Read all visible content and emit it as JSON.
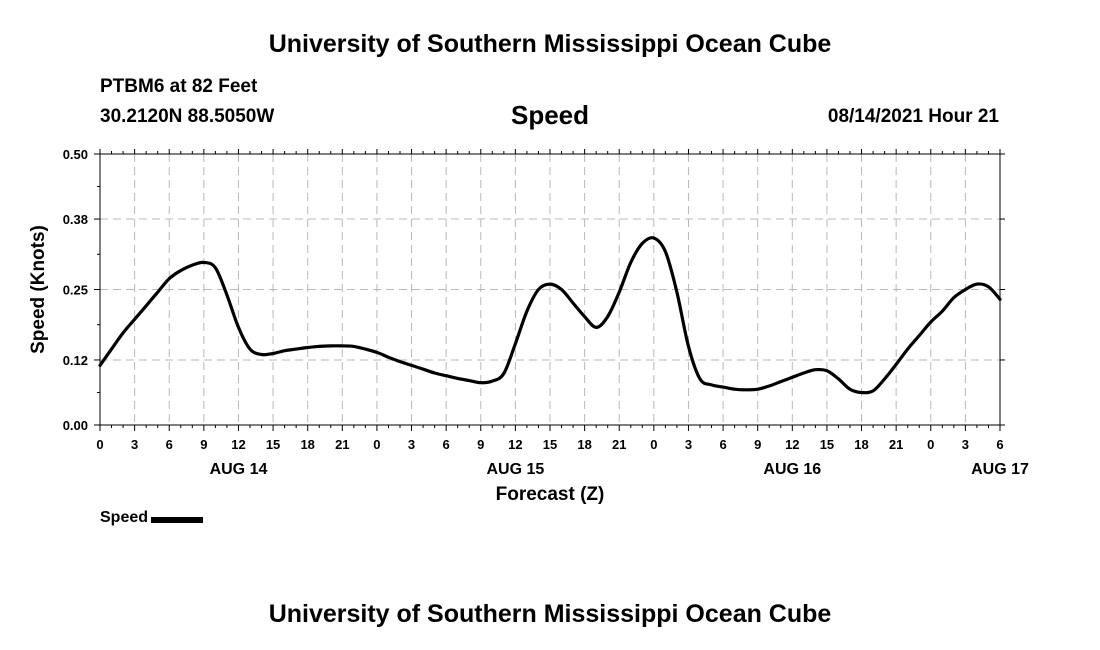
{
  "header": {
    "title": "University of Southern Mississippi Ocean Cube",
    "station": "PTBM6 at 82 Feet",
    "coordinates": "30.2120N  88.5050W",
    "variable": "Speed",
    "datetime": "08/14/2021 Hour 21"
  },
  "footer": {
    "title": "University of Southern Mississippi Ocean Cube"
  },
  "legend": {
    "label": "Speed"
  },
  "chart_data": {
    "type": "line",
    "title": "Speed",
    "xlabel": "Forecast (Z)",
    "ylabel": "Speed (Knots)",
    "ylim": [
      0,
      0.5
    ],
    "xlim": [
      0,
      78
    ],
    "y_ticks": [
      "0.00",
      "0.12",
      "0.25",
      "0.38",
      "0.50"
    ],
    "x_ticks": [
      "0",
      "3",
      "6",
      "9",
      "12",
      "15",
      "18",
      "21",
      "0",
      "3",
      "6",
      "9",
      "12",
      "15",
      "18",
      "21",
      "0",
      "3",
      "6",
      "9",
      "12",
      "15",
      "18",
      "21",
      "0",
      "3",
      "6"
    ],
    "date_labels": [
      {
        "label": "AUG 14",
        "hour": 12
      },
      {
        "label": "AUG 15",
        "hour": 36
      },
      {
        "label": "AUG 16",
        "hour": 60
      },
      {
        "label": "AUG 17",
        "hour": 78
      }
    ],
    "grid": true,
    "legend_position": "bottom-left",
    "series": [
      {
        "name": "Speed",
        "color": "#000000",
        "x": [
          0,
          1,
          2,
          3,
          4,
          5,
          6,
          7,
          8,
          9,
          10,
          11,
          12,
          13,
          14,
          15,
          16,
          17,
          18,
          19,
          20,
          21,
          22,
          23,
          24,
          25,
          26,
          27,
          28,
          29,
          30,
          31,
          32,
          33,
          34,
          35,
          36,
          37,
          38,
          39,
          40,
          41,
          42,
          43,
          44,
          45,
          46,
          47,
          48,
          49,
          50,
          51,
          52,
          53,
          54,
          55,
          56,
          57,
          58,
          59,
          60,
          61,
          62,
          63,
          64,
          65,
          66,
          67,
          68,
          69,
          70,
          71,
          72,
          73,
          74,
          75,
          76,
          77,
          78
        ],
        "y": [
          0.11,
          0.14,
          0.17,
          0.195,
          0.22,
          0.245,
          0.27,
          0.285,
          0.295,
          0.3,
          0.29,
          0.24,
          0.18,
          0.14,
          0.13,
          0.132,
          0.137,
          0.14,
          0.143,
          0.145,
          0.146,
          0.146,
          0.145,
          0.14,
          0.134,
          0.125,
          0.117,
          0.11,
          0.103,
          0.096,
          0.091,
          0.086,
          0.082,
          0.078,
          0.081,
          0.095,
          0.15,
          0.21,
          0.25,
          0.26,
          0.25,
          0.225,
          0.2,
          0.18,
          0.2,
          0.245,
          0.3,
          0.335,
          0.345,
          0.32,
          0.245,
          0.145,
          0.085,
          0.074,
          0.07,
          0.066,
          0.065,
          0.066,
          0.072,
          0.08,
          0.088,
          0.096,
          0.102,
          0.1,
          0.085,
          0.066,
          0.06,
          0.063,
          0.085,
          0.112,
          0.14,
          0.165,
          0.19,
          0.21,
          0.235,
          0.25,
          0.26,
          0.255,
          0.232
        ]
      }
    ]
  }
}
